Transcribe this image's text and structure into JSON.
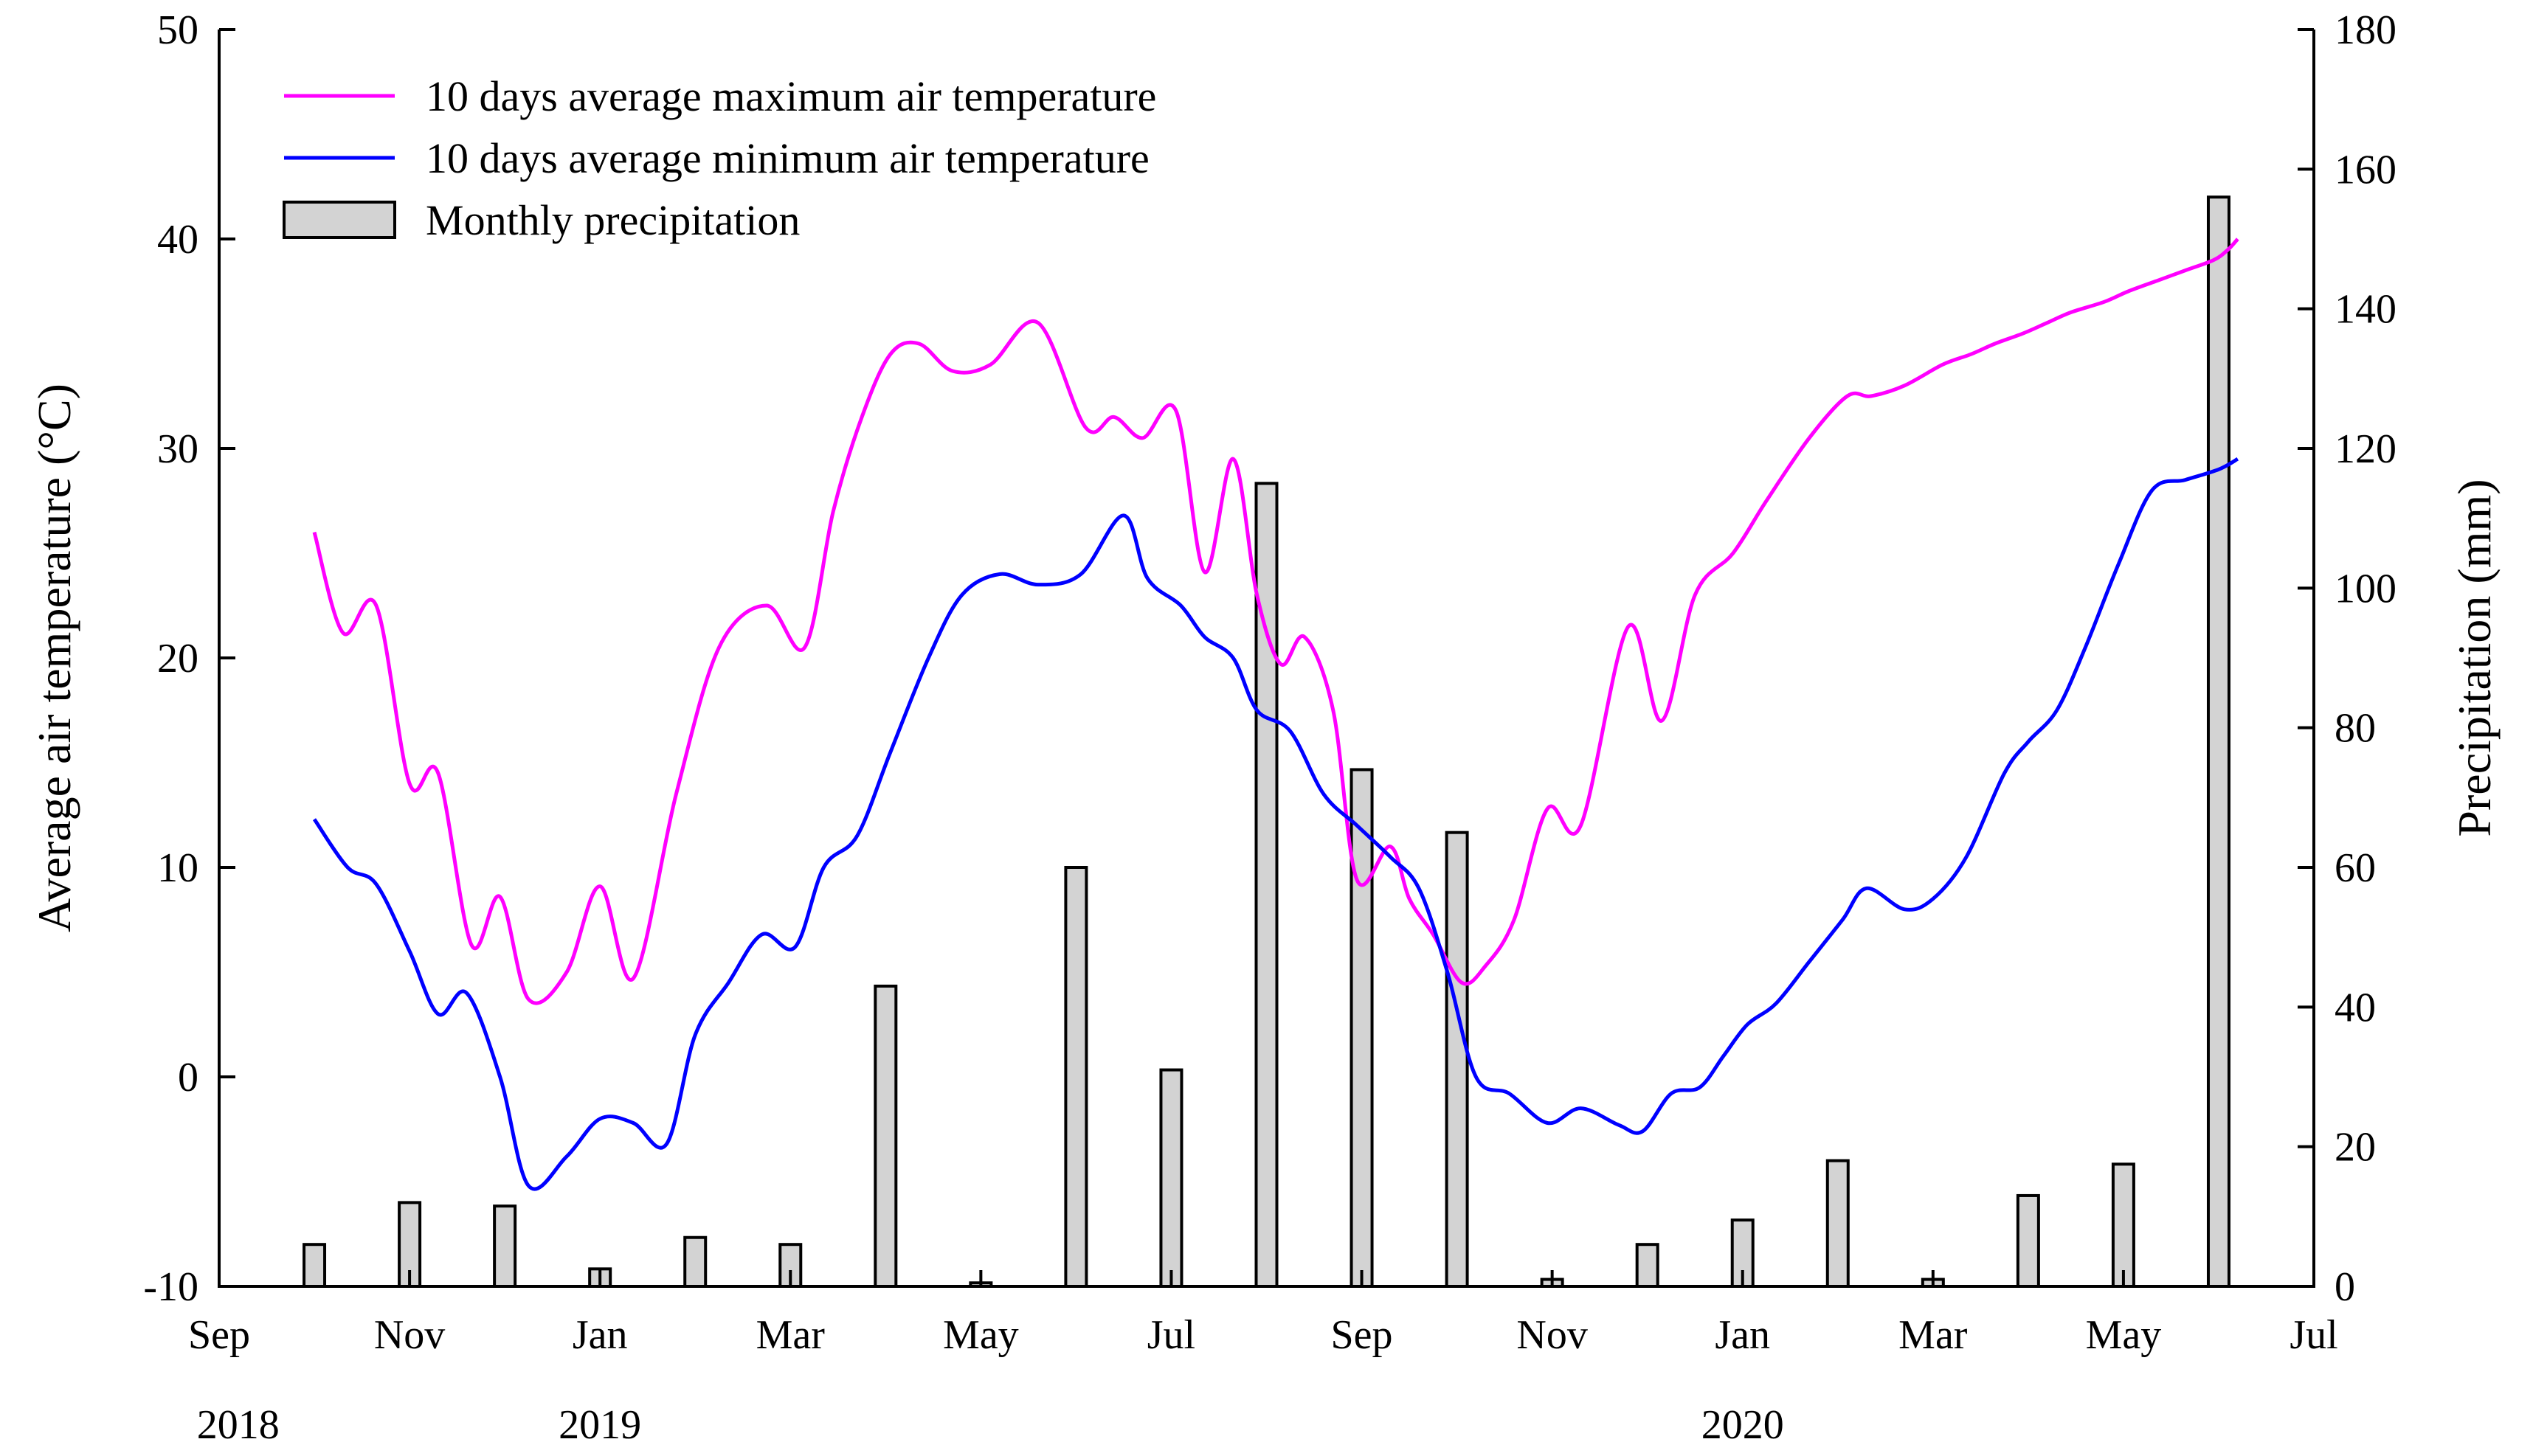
{
  "chart_data": {
    "type": "bar+line",
    "title": "",
    "xlabel": "",
    "ylabel": "Average air temperature (°C)",
    "y2label": "Precipitation (mm)",
    "ylim": [
      -10,
      50
    ],
    "y2lim": [
      0,
      180
    ],
    "yticks": [
      -10,
      0,
      10,
      20,
      30,
      40,
      50
    ],
    "y2ticks": [
      0,
      20,
      40,
      60,
      80,
      100,
      120,
      140,
      160,
      180
    ],
    "xlim": [
      0,
      22
    ],
    "x_unit": "months since 1 Sep 2018",
    "xticks": [
      {
        "pos": 0,
        "label": "Sep"
      },
      {
        "pos": 2,
        "label": "Nov"
      },
      {
        "pos": 4,
        "label": "Jan"
      },
      {
        "pos": 6,
        "label": "Mar"
      },
      {
        "pos": 8,
        "label": "May"
      },
      {
        "pos": 10,
        "label": "Jul"
      },
      {
        "pos": 12,
        "label": "Sep"
      },
      {
        "pos": 14,
        "label": "Nov"
      },
      {
        "pos": 16,
        "label": "Jan"
      },
      {
        "pos": 18,
        "label": "Mar"
      },
      {
        "pos": 20,
        "label": "May"
      },
      {
        "pos": 22,
        "label": "Jul"
      }
    ],
    "year_labels": [
      {
        "pos": 0.2,
        "label": "2018"
      },
      {
        "pos": 4.0,
        "label": "2019"
      },
      {
        "pos": 16.0,
        "label": "2020"
      }
    ],
    "legend_position": "top-left",
    "series": [
      {
        "name": "10 days average maximum air temperature",
        "kind": "line",
        "axis": "left",
        "color": "#ff00ff",
        "x": [
          1.0,
          1.3,
          1.65,
          2.0,
          2.3,
          2.65,
          2.95,
          3.25,
          3.65,
          4.0,
          4.35,
          4.8,
          5.25,
          5.75,
          6.15,
          6.45,
          6.75,
          7.05,
          7.35,
          7.7,
          8.1,
          8.6,
          9.1,
          9.4,
          9.7,
          10.05,
          10.35,
          10.65,
          10.9,
          11.15,
          11.4,
          11.7,
          11.95,
          12.3,
          12.5,
          12.75,
          13.05,
          13.3,
          13.6,
          13.95,
          14.3,
          14.8,
          15.15,
          15.5,
          15.9,
          16.25,
          16.7,
          17.1,
          17.35,
          17.7,
          18.1,
          18.4,
          18.65,
          18.95,
          19.2,
          19.45,
          19.8,
          20.05,
          20.35,
          20.65,
          20.95,
          21.1,
          21.2
        ],
        "values": [
          26.0,
          21.2,
          22.5,
          14.0,
          14.5,
          6.3,
          8.6,
          3.7,
          5.0,
          9.1,
          4.7,
          13.5,
          20.5,
          22.5,
          20.5,
          27.0,
          31.5,
          34.5,
          35.0,
          33.7,
          34.0,
          36.0,
          31.0,
          31.5,
          30.5,
          31.8,
          24.1,
          29.5,
          23.0,
          19.7,
          21.0,
          17.5,
          9.4,
          11.0,
          8.5,
          6.8,
          4.5,
          5.3,
          7.5,
          12.8,
          12.0,
          21.5,
          17.0,
          23.0,
          25.0,
          27.5,
          30.5,
          32.5,
          32.5,
          33.0,
          34.0,
          34.5,
          35.0,
          35.5,
          36.0,
          36.5,
          37.0,
          37.5,
          38.0,
          38.5,
          39.0,
          39.5,
          40.0
        ],
        "clip_x": [
          1.0,
          21.2
        ]
      },
      {
        "name": "10 days average minimum air temperature",
        "kind": "line",
        "axis": "left",
        "color": "#0000ff",
        "x": [
          1.0,
          1.35,
          1.65,
          2.0,
          2.3,
          2.6,
          2.95,
          3.25,
          3.65,
          4.0,
          4.35,
          4.7,
          5.0,
          5.35,
          5.7,
          6.05,
          6.35,
          6.7,
          7.05,
          7.45,
          7.8,
          8.2,
          8.6,
          9.05,
          9.5,
          9.75,
          10.1,
          10.35,
          10.65,
          10.9,
          11.25,
          11.6,
          11.95,
          12.3,
          12.6,
          12.9,
          13.2,
          13.55,
          13.95,
          14.3,
          14.7,
          14.95,
          15.25,
          15.55,
          15.8,
          16.05,
          16.35,
          16.7,
          17.05,
          17.3,
          17.7,
          18.0,
          18.35,
          18.75,
          19.0,
          19.3,
          19.6,
          19.95,
          20.3,
          20.65,
          21.0,
          21.2
        ],
        "values": [
          12.3,
          10.0,
          9.2,
          6.0,
          3.0,
          4.0,
          0.0,
          -5.2,
          -3.8,
          -2.0,
          -2.2,
          -3.2,
          2.0,
          4.5,
          6.8,
          6.2,
          10.0,
          11.5,
          15.5,
          20.0,
          23.0,
          24.0,
          23.5,
          24.0,
          26.8,
          23.8,
          22.5,
          21.0,
          20.0,
          17.5,
          16.5,
          13.5,
          12.0,
          10.5,
          9.0,
          5.0,
          0.0,
          -0.8,
          -2.2,
          -1.5,
          -2.3,
          -2.6,
          -0.8,
          -0.5,
          1.0,
          2.5,
          3.5,
          5.5,
          7.5,
          9.0,
          8.0,
          8.5,
          10.5,
          14.5,
          16.0,
          17.5,
          20.5,
          24.5,
          28.0,
          28.5,
          29.0,
          29.5
        ],
        "clip_x": [
          1.0,
          21.2
        ]
      },
      {
        "name": "Monthly precipitation",
        "kind": "bar",
        "axis": "right",
        "color": "#d3d3d3",
        "x": [
          1,
          2,
          3,
          4,
          5,
          6,
          7,
          8,
          9,
          10,
          11,
          12,
          13,
          14,
          15,
          16,
          17,
          18,
          19,
          20,
          21
        ],
        "values": [
          6,
          12,
          11.5,
          2.5,
          7,
          6,
          43,
          0.5,
          60,
          31,
          115,
          74,
          65,
          1,
          6,
          9.5,
          18,
          1,
          13,
          17.5,
          156
        ]
      }
    ],
    "legend": [
      {
        "label": "10 days average maximum air temperature",
        "kind": "line",
        "color": "#ff00ff"
      },
      {
        "label": "10 days average minimum air temperature",
        "kind": "line",
        "color": "#0000ff"
      },
      {
        "label": "Monthly precipitation",
        "kind": "bar",
        "color": "#d3d3d3"
      }
    ]
  }
}
